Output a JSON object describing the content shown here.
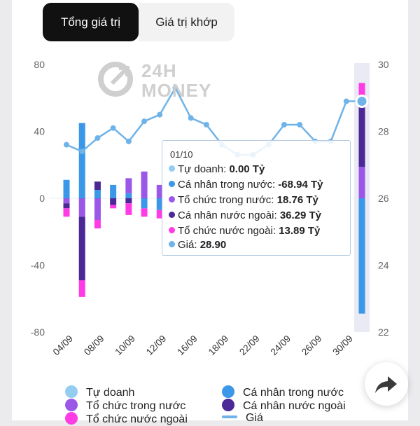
{
  "tabs": {
    "total_label": "Tổng giá trị",
    "match_label": "Giá trị khớp"
  },
  "watermark": {
    "line1": "24H",
    "line2": "MONEY"
  },
  "colors": {
    "tu_doanh": "#93cdf2",
    "ca_nhan_trong_nuoc": "#3b97e8",
    "to_chuc_trong_nuoc": "#9a57e8",
    "ca_nhan_nuoc_ngoai": "#4c2896",
    "to_chuc_nuoc_ngoai": "#ff3be6",
    "gia": "#6fb3e8"
  },
  "tooltip": {
    "date": "01/10",
    "rows": [
      {
        "label": "Tự doanh:",
        "value": "0.00 Tỷ"
      },
      {
        "label": "Cá nhân trong nước:",
        "value": "-68.94 Tỷ"
      },
      {
        "label": "Tổ chức trong nước:",
        "value": "18.76 Tỷ"
      },
      {
        "label": "Cá nhân nước ngoài:",
        "value": "36.29 Tỷ"
      },
      {
        "label": "Tổ chức nước ngoài:",
        "value": "13.89 Tỷ"
      },
      {
        "label": "Giá:",
        "value": "28.90"
      }
    ]
  },
  "legend": [
    "Tự doanh",
    "Cá nhân trong nước",
    "Tổ chức trong nước",
    "Cá nhân nước ngoài",
    "Tổ chức nước ngoài",
    "Giá"
  ],
  "share_button": {
    "icon": "share-arrow-icon"
  },
  "chart_data": {
    "type": "bar",
    "stacked": true,
    "y_left_ticks": [
      "80",
      "40",
      "0",
      "-40",
      "-80"
    ],
    "y_left_lim": [
      -80,
      80
    ],
    "y_right_ticks": [
      "30",
      "28",
      "26",
      "24",
      "22"
    ],
    "y_right_lim": [
      22,
      30
    ],
    "x_tick_labels": [
      "04/09",
      "08/09",
      "10/09",
      "12/09",
      "16/09",
      "18/09",
      "22/09",
      "24/09",
      "26/09",
      "30/09"
    ],
    "highlighted_index": 19,
    "series": [
      {
        "name": "Tự doanh",
        "values": [
          0,
          0,
          0,
          0,
          0,
          0,
          0,
          0,
          0,
          0,
          0,
          0,
          0,
          0,
          0,
          0,
          0,
          0,
          0,
          0
        ]
      },
      {
        "name": "Cá nhân trong nước",
        "values": [
          11,
          45,
          5,
          8,
          3,
          -6,
          -7,
          0,
          0,
          0,
          0,
          0,
          0,
          0,
          0,
          0,
          0,
          0,
          0,
          -68.94
        ]
      },
      {
        "name": "Tổ chức trong nước",
        "values": [
          -3,
          -11,
          -13,
          0,
          9,
          16,
          8,
          0,
          0,
          0,
          0,
          0,
          0,
          0,
          0,
          0,
          0,
          0,
          0,
          18.76
        ]
      },
      {
        "name": "Cá nhân nước ngoài",
        "values": [
          -3,
          -38,
          5,
          -4,
          -3,
          0,
          0,
          0,
          0,
          0,
          0,
          0,
          0,
          0,
          0,
          0,
          0,
          0,
          0,
          36.29
        ]
      },
      {
        "name": "Tổ chức nước ngoài",
        "values": [
          -5,
          -10,
          -5,
          -2,
          -7,
          -5,
          -5,
          0,
          0,
          0,
          0,
          0,
          0,
          0,
          0,
          0,
          0,
          0,
          0,
          13.89
        ]
      },
      {
        "name": "Giá",
        "type": "line",
        "axis": "right",
        "values": [
          27.6,
          27.4,
          27.8,
          28.1,
          27.7,
          28.3,
          28.5,
          29.3,
          28.4,
          28.2,
          27.6,
          27.3,
          27.3,
          27.6,
          28.2,
          28.2,
          27.7,
          27.7,
          28.9,
          28.9
        ]
      }
    ]
  }
}
